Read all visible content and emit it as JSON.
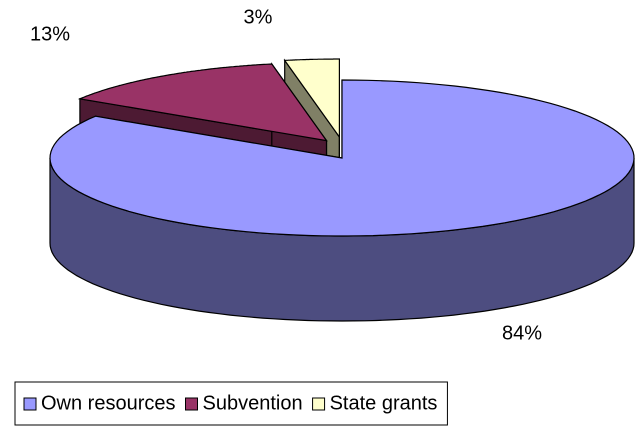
{
  "chart_data": {
    "type": "pie3d",
    "categories": [
      "Own resources",
      "Subvention",
      "State grants"
    ],
    "values": [
      84,
      13,
      3
    ],
    "value_labels": [
      "84%",
      "13%",
      "3%"
    ],
    "colors": [
      "#9999ff",
      "#993366",
      "#ffffcc"
    ],
    "legend": "bottom"
  }
}
